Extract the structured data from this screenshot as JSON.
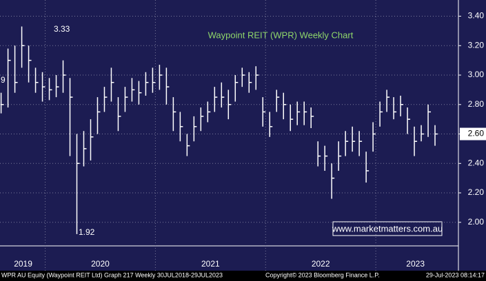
{
  "chart_data": {
    "type": "ohlc",
    "title": "Waypoint REIT (WPR) Weekly Chart",
    "x": [
      2019.6,
      2019.6625,
      2019.725,
      2019.7875,
      2019.85,
      2019.9125,
      2019.975,
      2020.0375,
      2020.1,
      2020.1625,
      2020.225,
      2020.2875,
      2020.35,
      2020.4125,
      2020.475,
      2020.5375,
      2020.6,
      2020.6625,
      2020.725,
      2020.7875,
      2020.85,
      2020.9125,
      2020.975,
      2021.0375,
      2021.1,
      2021.1625,
      2021.225,
      2021.2875,
      2021.35,
      2021.4125,
      2021.475,
      2021.5375,
      2021.6,
      2021.6625,
      2021.725,
      2021.7875,
      2021.85,
      2021.9125,
      2021.975,
      2022.0375,
      2022.1,
      2022.1625,
      2022.225,
      2022.2875,
      2022.35,
      2022.4125,
      2022.475,
      2022.5375,
      2022.6,
      2022.6625,
      2022.725,
      2022.7875,
      2022.85,
      2022.9125,
      2022.975,
      2023.0375,
      2023.1,
      2023.1625,
      2023.225,
      2023.2875,
      2023.35,
      2023.4125,
      2023.475,
      2023.5375
    ],
    "high": [
      2.88,
      3.18,
      3.2,
      3.33,
      3.2,
      3.05,
      3.02,
      2.98,
      3.0,
      3.1,
      2.98,
      2.6,
      2.62,
      2.7,
      2.85,
      2.92,
      3.05,
      2.85,
      2.92,
      2.98,
      2.96,
      3.02,
      3.05,
      3.07,
      3.05,
      2.85,
      2.75,
      2.6,
      2.72,
      2.78,
      2.82,
      2.92,
      2.95,
      2.9,
      3.0,
      3.05,
      3.02,
      3.06,
      2.85,
      2.75,
      2.9,
      2.88,
      2.8,
      2.82,
      2.82,
      2.78,
      2.55,
      2.52,
      2.4,
      2.55,
      2.62,
      2.65,
      2.62,
      2.48,
      2.68,
      2.82,
      2.9,
      2.85,
      2.86,
      2.78,
      2.65,
      2.66,
      2.8,
      2.66
    ],
    "low": [
      2.74,
      2.78,
      2.88,
      3.05,
      2.95,
      2.88,
      2.82,
      2.83,
      2.85,
      2.88,
      2.45,
      1.92,
      2.38,
      2.42,
      2.6,
      2.75,
      2.82,
      2.62,
      2.75,
      2.82,
      2.8,
      2.86,
      2.88,
      2.9,
      2.8,
      2.62,
      2.55,
      2.45,
      2.55,
      2.62,
      2.68,
      2.75,
      2.78,
      2.7,
      2.82,
      2.92,
      2.88,
      2.9,
      2.65,
      2.58,
      2.75,
      2.7,
      2.62,
      2.66,
      2.66,
      2.64,
      2.38,
      2.35,
      2.16,
      2.35,
      2.45,
      2.48,
      2.45,
      2.27,
      2.48,
      2.65,
      2.75,
      2.7,
      2.72,
      2.6,
      2.45,
      2.55,
      2.58,
      2.52
    ],
    "close": [
      2.8,
      3.1,
      2.95,
      3.2,
      3.1,
      2.95,
      2.92,
      2.9,
      2.92,
      3.0,
      2.85,
      2.4,
      2.5,
      2.58,
      2.75,
      2.85,
      2.95,
      2.72,
      2.85,
      2.9,
      2.88,
      2.95,
      2.95,
      3.0,
      2.92,
      2.75,
      2.65,
      2.52,
      2.65,
      2.72,
      2.75,
      2.85,
      2.85,
      2.8,
      2.95,
      3.0,
      2.95,
      3.0,
      2.75,
      2.65,
      2.85,
      2.8,
      2.7,
      2.75,
      2.75,
      2.72,
      2.45,
      2.45,
      2.3,
      2.45,
      2.55,
      2.55,
      2.55,
      2.35,
      2.6,
      2.75,
      2.85,
      2.75,
      2.8,
      2.7,
      2.55,
      2.6,
      2.75,
      2.6
    ],
    "color": "#ffffff",
    "xlim": [
      2019.59,
      2023.75
    ],
    "xticks": [
      {
        "value": 2019.8,
        "label": "2019"
      },
      {
        "value": 2020.5,
        "label": "2020"
      },
      {
        "value": 2021.5,
        "label": "2021"
      },
      {
        "value": 2022.5,
        "label": "2022"
      },
      {
        "value": 2023.36,
        "label": "2023"
      }
    ],
    "ylim": [
      1.84,
      3.51
    ],
    "yticks": [
      {
        "value": 2.0,
        "label": "2.00"
      },
      {
        "value": 2.2,
        "label": "2.20"
      },
      {
        "value": 2.4,
        "label": "2.40"
      },
      {
        "value": 2.6,
        "label": "2.60"
      },
      {
        "value": 2.8,
        "label": "2.80"
      },
      {
        "value": 3.0,
        "label": "3.00"
      },
      {
        "value": 3.2,
        "label": "3.20"
      },
      {
        "value": 3.4,
        "label": "3.40"
      }
    ],
    "last_price": {
      "value": 2.6,
      "label": "2.60"
    },
    "grid": true,
    "annotations": [
      "3.33",
      "1.92",
      "9"
    ],
    "watermark": "www.marketmatters.com.au",
    "footer": [
      "WPR AU Equity (Waypoint REIT Ltd) Graph 217  Weekly 30JUL2018-29JUL2023",
      "Copyright© 2023 Bloomberg Finance L.P.",
      "29-Jul-2023 08:14:17"
    ]
  }
}
